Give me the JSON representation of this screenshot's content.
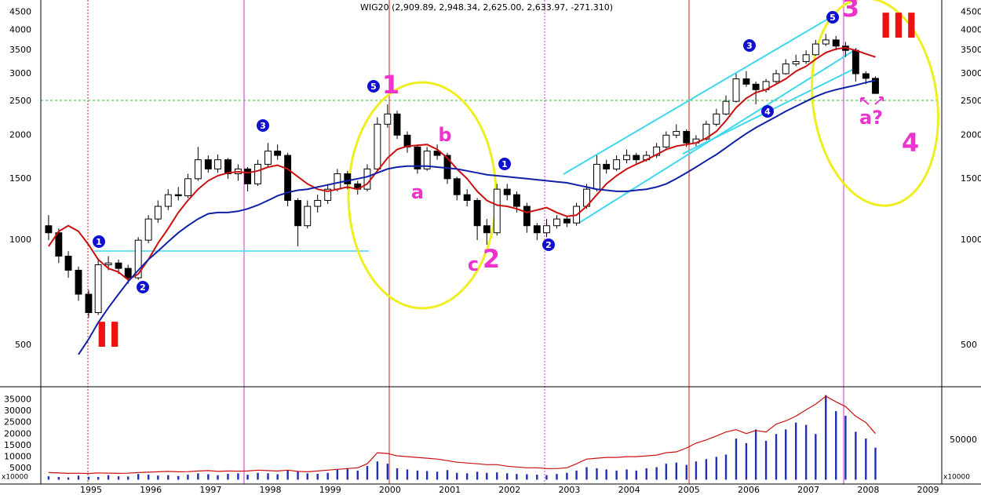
{
  "chart_data": {
    "type": "candlestick",
    "title": "WIG20 (2,909.89, 2,948.34, 2,625.00, 2,633.97, -271.310)",
    "x": [
      1994.5,
      1994.67,
      1994.83,
      1995.0,
      1995.17,
      1995.33,
      1995.5,
      1995.67,
      1995.83,
      1996.0,
      1996.17,
      1996.33,
      1996.5,
      1996.67,
      1996.83,
      1997.0,
      1997.17,
      1997.33,
      1997.5,
      1997.67,
      1997.83,
      1998.0,
      1998.17,
      1998.33,
      1998.5,
      1998.67,
      1998.83,
      1999.0,
      1999.17,
      1999.33,
      1999.5,
      1999.67,
      1999.83,
      2000.0,
      2000.17,
      2000.33,
      2000.5,
      2000.67,
      2000.83,
      2001.0,
      2001.17,
      2001.33,
      2001.5,
      2001.67,
      2001.83,
      2002.0,
      2002.17,
      2002.33,
      2002.5,
      2002.67,
      2002.83,
      2003.0,
      2003.17,
      2003.33,
      2003.5,
      2003.67,
      2003.83,
      2004.0,
      2004.17,
      2004.33,
      2004.5,
      2004.67,
      2004.83,
      2005.0,
      2005.17,
      2005.33,
      2005.5,
      2005.67,
      2005.83,
      2006.0,
      2006.17,
      2006.33,
      2006.5,
      2006.67,
      2006.83,
      2007.0,
      2007.17,
      2007.33,
      2007.5,
      2007.67,
      2007.83,
      2008.0,
      2008.17,
      2008.33
    ],
    "open": [
      1100,
      1050,
      900,
      820,
      700,
      620,
      850,
      860,
      830,
      780,
      1000,
      1150,
      1250,
      1350,
      1340,
      1500,
      1700,
      1600,
      1700,
      1550,
      1600,
      1450,
      1650,
      1800,
      1750,
      1300,
      1100,
      1250,
      1300,
      1400,
      1550,
      1450,
      1400,
      1600,
      2150,
      2300,
      2000,
      1850,
      1600,
      1800,
      1750,
      1500,
      1350,
      1300,
      1100,
      1050,
      1400,
      1350,
      1250,
      1100,
      1050,
      1100,
      1150,
      1120,
      1250,
      1400,
      1650,
      1600,
      1700,
      1750,
      1700,
      1750,
      1850,
      2000,
      2050,
      1900,
      1950,
      2150,
      2300,
      2500,
      2900,
      2800,
      2700,
      2850,
      3000,
      3200,
      3250,
      3400,
      3650,
      3750,
      3600,
      3500,
      3000,
      2909.89
    ],
    "high": [
      1180,
      1080,
      930,
      840,
      720,
      880,
      900,
      880,
      850,
      1020,
      1180,
      1300,
      1400,
      1420,
      1550,
      1850,
      1750,
      1760,
      1720,
      1650,
      1620,
      1700,
      1900,
      1880,
      1780,
      1320,
      1300,
      1350,
      1450,
      1600,
      1580,
      1480,
      1650,
      2250,
      2450,
      2350,
      2050,
      1880,
      1850,
      1880,
      1780,
      1520,
      1400,
      1320,
      1150,
      1450,
      1450,
      1380,
      1280,
      1120,
      1150,
      1180,
      1170,
      1280,
      1450,
      1750,
      1700,
      1750,
      1820,
      1780,
      1800,
      1900,
      2050,
      2150,
      2080,
      2000,
      2200,
      2380,
      2600,
      3000,
      3050,
      2850,
      2900,
      3080,
      3300,
      3400,
      3500,
      3750,
      3900,
      3850,
      3700,
      3550,
      3050,
      2948.34
    ],
    "low": [
      1000,
      860,
      780,
      670,
      600,
      610,
      820,
      800,
      750,
      770,
      980,
      1120,
      1220,
      1300,
      1320,
      1480,
      1560,
      1560,
      1500,
      1480,
      1380,
      1430,
      1620,
      1700,
      1250,
      960,
      1080,
      1200,
      1270,
      1380,
      1400,
      1350,
      1380,
      1580,
      2100,
      1950,
      1780,
      1550,
      1580,
      1700,
      1450,
      1300,
      1250,
      1000,
      970,
      1030,
      1300,
      1200,
      1050,
      1000,
      1020,
      1080,
      1090,
      1100,
      1230,
      1380,
      1550,
      1580,
      1660,
      1650,
      1680,
      1720,
      1830,
      1960,
      1850,
      1860,
      1930,
      2120,
      2280,
      2480,
      2750,
      2450,
      2650,
      2820,
      2980,
      3150,
      3200,
      3380,
      3600,
      3500,
      3350,
      2850,
      2800,
      2625.0
    ],
    "close": [
      1050,
      900,
      820,
      700,
      620,
      850,
      860,
      830,
      780,
      1000,
      1150,
      1250,
      1350,
      1340,
      1500,
      1700,
      1600,
      1700,
      1550,
      1600,
      1450,
      1650,
      1800,
      1750,
      1300,
      1100,
      1250,
      1300,
      1400,
      1550,
      1450,
      1400,
      1600,
      2150,
      2300,
      2000,
      1850,
      1600,
      1800,
      1750,
      1500,
      1350,
      1300,
      1100,
      1050,
      1400,
      1350,
      1250,
      1100,
      1050,
      1100,
      1150,
      1120,
      1250,
      1400,
      1650,
      1600,
      1700,
      1750,
      1700,
      1750,
      1850,
      2000,
      2050,
      1900,
      1950,
      2150,
      2300,
      2500,
      2900,
      2800,
      2700,
      2850,
      3000,
      3200,
      3250,
      3400,
      3650,
      3750,
      3600,
      3500,
      3000,
      2909.89,
      2633.97
    ],
    "up_color": "#ffffff",
    "down_color": "#000000",
    "xlim": [
      1994.37,
      2009.4
    ],
    "xticks": [
      1995,
      1996,
      1997,
      1998,
      1999,
      2000,
      2001,
      2002,
      2003,
      2004,
      2005,
      2006,
      2007,
      2008,
      2009
    ],
    "ylim": [
      380,
      4880
    ],
    "yticks": [
      500,
      1000,
      1500,
      2000,
      2500,
      3000,
      3500,
      4000,
      4500
    ],
    "log_y": true,
    "grid": true,
    "overlays": [
      {
        "color": "#cc1010",
        "values": [
          960,
          1060,
          1100,
          1060,
          970,
          880,
          830,
          810,
          770,
          800,
          880,
          980,
          1080,
          1200,
          1300,
          1400,
          1480,
          1530,
          1560,
          1570,
          1560,
          1580,
          1620,
          1640,
          1600,
          1520,
          1450,
          1400,
          1380,
          1400,
          1420,
          1400,
          1450,
          1580,
          1720,
          1820,
          1860,
          1870,
          1880,
          1820,
          1720,
          1600,
          1500,
          1380,
          1300,
          1260,
          1250,
          1230,
          1200,
          1220,
          1240,
          1200,
          1170,
          1180,
          1250,
          1350,
          1450,
          1530,
          1600,
          1650,
          1700,
          1760,
          1820,
          1860,
          1880,
          1900,
          1960,
          2050,
          2200,
          2400,
          2550,
          2650,
          2700,
          2800,
          2900,
          3050,
          3150,
          3300,
          3450,
          3530,
          3560,
          3500,
          3420,
          3350
        ]
      },
      {
        "color": "#1020a8",
        "values": [
          null,
          null,
          null,
          470,
          520,
          580,
          640,
          700,
          760,
          820,
          880,
          930,
          990,
          1050,
          1100,
          1150,
          1190,
          1200,
          1200,
          1210,
          1230,
          1260,
          1300,
          1340,
          1370,
          1390,
          1400,
          1420,
          1440,
          1460,
          1480,
          1500,
          1520,
          1560,
          1600,
          1620,
          1630,
          1630,
          1630,
          1620,
          1610,
          1600,
          1580,
          1560,
          1540,
          1530,
          1520,
          1510,
          1500,
          1490,
          1480,
          1470,
          1460,
          1440,
          1420,
          1400,
          1390,
          1380,
          1380,
          1390,
          1400,
          1420,
          1450,
          1500,
          1560,
          1620,
          1690,
          1760,
          1840,
          1930,
          2020,
          2100,
          2180,
          2260,
          2340,
          2420,
          2500,
          2580,
          2650,
          2700,
          2740,
          2780,
          2830,
          2870
        ]
      }
    ],
    "volume": {
      "color": "#2030b0",
      "values": [
        1500,
        1200,
        1000,
        1800,
        1300,
        1200,
        2000,
        1500,
        1400,
        2500,
        2200,
        1800,
        2000,
        1600,
        2200,
        2800,
        2400,
        2000,
        2600,
        2800,
        2200,
        3000,
        2800,
        2400,
        4000,
        3500,
        2800,
        2600,
        3000,
        4500,
        5000,
        4000,
        6000,
        8000,
        7000,
        5000,
        4500,
        4000,
        3800,
        3500,
        4200,
        3000,
        2800,
        3500,
        3000,
        3200,
        2800,
        2500,
        2400,
        2200,
        2000,
        2500,
        3000,
        4000,
        5500,
        5000,
        4500,
        4000,
        4500,
        4000,
        5000,
        5500,
        7000,
        7500,
        6500,
        8000,
        9000,
        10000,
        11000,
        18000,
        16000,
        22000,
        17000,
        20000,
        22000,
        25000,
        24000,
        20000,
        37000,
        30000,
        28000,
        21000,
        18000,
        14000
      ],
      "ylim": [
        0,
        40000
      ],
      "yticks": [
        5000,
        10000,
        15000,
        20000,
        25000,
        30000,
        35000
      ],
      "unit_label": "x10000",
      "line_color": "#cc1010",
      "line_values": [
        9000,
        8500,
        8000,
        8200,
        7800,
        8500,
        8300,
        8000,
        8200,
        9000,
        9500,
        10000,
        10500,
        10000,
        10200,
        11000,
        11500,
        10500,
        11000,
        10800,
        11000,
        12000,
        11500,
        11000,
        12000,
        10500,
        10000,
        11000,
        12000,
        13000,
        14000,
        15000,
        20000,
        34000,
        33000,
        30000,
        29000,
        28000,
        27000,
        26000,
        24000,
        22000,
        21000,
        20000,
        19000,
        19000,
        17000,
        16000,
        15000,
        15000,
        14000,
        14000,
        15000,
        20000,
        26000,
        27000,
        28000,
        28000,
        29000,
        29000,
        30000,
        31000,
        34000,
        35000,
        40000,
        46000,
        50000,
        55000,
        60000,
        63000,
        58000,
        62000,
        60000,
        70000,
        74000,
        80000,
        88000,
        95000,
        105000,
        98000,
        92000,
        80000,
        72000,
        58000
      ],
      "y2lim": [
        0,
        115000
      ],
      "y2ticks": [
        50000
      ]
    },
    "annotations": [
      "1",
      "2",
      "3",
      "5",
      "1",
      "2",
      "3",
      "4",
      "5",
      "1",
      "a",
      "b",
      "c",
      "2",
      "3",
      "a?",
      "4",
      "II",
      "III"
    ]
  }
}
